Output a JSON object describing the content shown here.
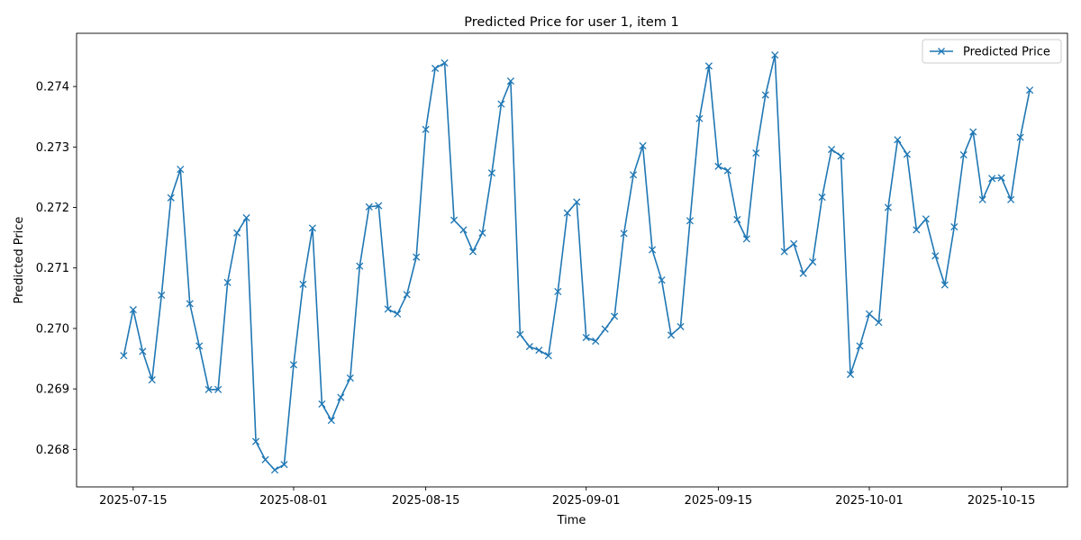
{
  "chart_data": {
    "type": "line",
    "title": "Predicted Price for user 1, item 1",
    "xlabel": "Time",
    "ylabel": "Predicted Price",
    "xlim": [
      "2025-07-09",
      "2025-10-22"
    ],
    "ylim": [
      0.26738,
      0.27488
    ],
    "x_ticks": [
      "2025-07-15",
      "2025-08-01",
      "2025-08-15",
      "2025-09-01",
      "2025-09-15",
      "2025-10-01",
      "2025-10-15"
    ],
    "y_ticks": [
      "0.268",
      "0.269",
      "0.270",
      "0.271",
      "0.272",
      "0.273",
      "0.274"
    ],
    "legend_position": "upper right",
    "grid": false,
    "colors": {
      "series": "#1f77b4"
    },
    "marker": "x",
    "series": [
      {
        "name": "Predicted Price",
        "x": [
          "2025-07-14",
          "2025-07-15",
          "2025-07-16",
          "2025-07-17",
          "2025-07-18",
          "2025-07-19",
          "2025-07-20",
          "2025-07-21",
          "2025-07-22",
          "2025-07-23",
          "2025-07-24",
          "2025-07-25",
          "2025-07-26",
          "2025-07-27",
          "2025-07-28",
          "2025-07-29",
          "2025-07-30",
          "2025-07-31",
          "2025-08-01",
          "2025-08-02",
          "2025-08-03",
          "2025-08-04",
          "2025-08-05",
          "2025-08-06",
          "2025-08-07",
          "2025-08-08",
          "2025-08-09",
          "2025-08-10",
          "2025-08-11",
          "2025-08-12",
          "2025-08-13",
          "2025-08-14",
          "2025-08-15",
          "2025-08-16",
          "2025-08-17",
          "2025-08-18",
          "2025-08-19",
          "2025-08-20",
          "2025-08-21",
          "2025-08-22",
          "2025-08-23",
          "2025-08-24",
          "2025-08-25",
          "2025-08-26",
          "2025-08-27",
          "2025-08-28",
          "2025-08-29",
          "2025-08-30",
          "2025-08-31",
          "2025-09-01",
          "2025-09-02",
          "2025-09-03",
          "2025-09-04",
          "2025-09-05",
          "2025-09-06",
          "2025-09-07",
          "2025-09-08",
          "2025-09-09",
          "2025-09-10",
          "2025-09-11",
          "2025-09-12",
          "2025-09-13",
          "2025-09-14",
          "2025-09-15",
          "2025-09-16",
          "2025-09-17",
          "2025-09-18",
          "2025-09-19",
          "2025-09-20",
          "2025-09-21",
          "2025-09-22",
          "2025-09-23",
          "2025-09-24",
          "2025-09-25",
          "2025-09-26",
          "2025-09-27",
          "2025-09-28",
          "2025-09-29",
          "2025-09-30",
          "2025-10-01",
          "2025-10-02",
          "2025-10-03",
          "2025-10-04",
          "2025-10-05",
          "2025-10-06",
          "2025-10-07",
          "2025-10-08",
          "2025-10-09",
          "2025-10-10",
          "2025-10-11",
          "2025-10-12",
          "2025-10-13",
          "2025-10-14",
          "2025-10-15",
          "2025-10-16",
          "2025-10-17",
          "2025-10-18"
        ],
        "values": [
          0.26955,
          0.27031,
          0.26962,
          0.26915,
          0.27055,
          0.27216,
          0.27263,
          0.27041,
          0.26971,
          0.26899,
          0.26899,
          0.27076,
          0.27158,
          0.27183,
          0.26813,
          0.26783,
          0.26766,
          0.26775,
          0.2694,
          0.27073,
          0.27166,
          0.26875,
          0.26848,
          0.26886,
          0.26918,
          0.27103,
          0.27201,
          0.27203,
          0.27032,
          0.27024,
          0.27056,
          0.27118,
          0.27329,
          0.2743,
          0.27439,
          0.27179,
          0.27163,
          0.27127,
          0.27158,
          0.27257,
          0.27371,
          0.27409,
          0.2699,
          0.2697,
          0.26964,
          0.26955,
          0.27061,
          0.27191,
          0.27209,
          0.26985,
          0.26979,
          0.26999,
          0.2702,
          0.27157,
          0.27254,
          0.27302,
          0.2713,
          0.2708,
          0.26989,
          0.27003,
          0.27178,
          0.27347,
          0.27434,
          0.27268,
          0.27261,
          0.2718,
          0.27148,
          0.2729,
          0.27386,
          0.27452,
          0.27127,
          0.2714,
          0.27091,
          0.2711,
          0.27217,
          0.27296,
          0.27285,
          0.26924,
          0.26971,
          0.27024,
          0.2701,
          0.272,
          0.27312,
          0.27288,
          0.27163,
          0.27181,
          0.2712,
          0.27072,
          0.27168,
          0.27287,
          0.27325,
          0.27213,
          0.27248,
          0.27249,
          0.27213,
          0.27316,
          0.27394
        ]
      }
    ]
  }
}
